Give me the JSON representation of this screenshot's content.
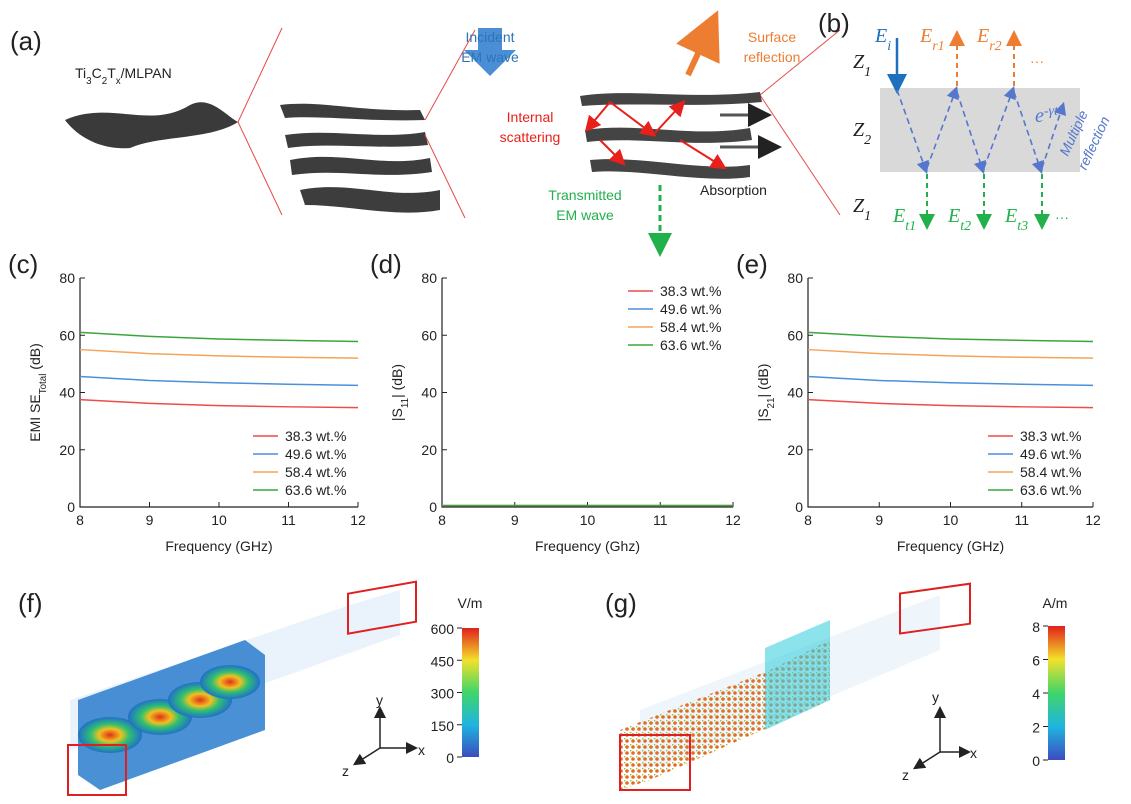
{
  "panel_a": {
    "label": "(a)",
    "material": [
      "Ti",
      "3",
      "C",
      "2",
      "T",
      "x",
      "/MLPAN"
    ],
    "incident": [
      "Incident",
      "EM wave"
    ],
    "surface": [
      "Surface",
      "reflection"
    ],
    "internal": [
      "Internal",
      "scattering"
    ],
    "transmitted": [
      "Transmitted",
      "EM wave"
    ],
    "absorption": "Absorption"
  },
  "panel_b": {
    "label": "(b)",
    "z_top": [
      "Z",
      "1"
    ],
    "z_mid": [
      "Z",
      "2"
    ],
    "z_bot": [
      "Z",
      "1"
    ],
    "e_i": [
      "E",
      "i"
    ],
    "e_r1": [
      "E",
      "r1"
    ],
    "e_r2": [
      "E",
      "r2"
    ],
    "dots_top": "···",
    "decay": [
      "e",
      "-γt"
    ],
    "multiple": [
      "Multiple",
      "reflection"
    ],
    "e_t1": [
      "E",
      "t1"
    ],
    "e_t2": [
      "E",
      "t2"
    ],
    "e_t3": [
      "E",
      "t3"
    ],
    "dots_bot": "···"
  },
  "chart_data": [
    {
      "type": "line",
      "panel_label": "(c)",
      "xlabel": "Frequency (GHz)",
      "ylabel": [
        "EMI SE",
        "Total",
        " (dB)"
      ],
      "x": [
        8,
        9,
        10,
        11,
        12
      ],
      "xlim": [
        8,
        12
      ],
      "xticks": [
        8,
        9,
        10,
        11,
        12
      ],
      "ylim": [
        0,
        80
      ],
      "yticks": [
        0,
        20,
        40,
        60,
        80
      ],
      "legend": "lower right",
      "series": [
        {
          "name": "38.3 wt.%",
          "color": "#ee4b4b",
          "values": [
            37.5,
            36.2,
            35.4,
            35.0,
            34.7
          ]
        },
        {
          "name": "49.6 wt.%",
          "color": "#4a90d9",
          "values": [
            45.6,
            44.2,
            43.4,
            42.9,
            42.5
          ]
        },
        {
          "name": "58.4 wt.%",
          "color": "#f5a35a",
          "values": [
            55.0,
            53.6,
            52.8,
            52.3,
            52.0
          ]
        },
        {
          "name": "63.6 wt.%",
          "color": "#3aa63a",
          "values": [
            61.0,
            59.6,
            58.7,
            58.2,
            57.8
          ]
        }
      ]
    },
    {
      "type": "line",
      "panel_label": "(d)",
      "xlabel": "Frequency (Ghz)",
      "ylabel": [
        "|S",
        "11",
        "| (dB)"
      ],
      "x": [
        8,
        9,
        10,
        11,
        12
      ],
      "xlim": [
        8,
        12
      ],
      "xticks": [
        8,
        9,
        10,
        11,
        12
      ],
      "ylim": [
        0,
        80
      ],
      "yticks": [
        0,
        20,
        40,
        60,
        80
      ],
      "legend": "upper right",
      "series": [
        {
          "name": "38.3 wt.%",
          "color": "#ee4b4b",
          "values": [
            0.5,
            0.5,
            0.5,
            0.5,
            0.5
          ]
        },
        {
          "name": "49.6 wt.%",
          "color": "#4a90d9",
          "values": [
            0.5,
            0.5,
            0.5,
            0.5,
            0.5
          ]
        },
        {
          "name": "58.4 wt.%",
          "color": "#f5a35a",
          "values": [
            0.5,
            0.5,
            0.5,
            0.5,
            0.5
          ]
        },
        {
          "name": "63.6 wt.%",
          "color": "#3aa63a",
          "values": [
            0.5,
            0.5,
            0.5,
            0.5,
            0.5
          ]
        }
      ]
    },
    {
      "type": "line",
      "panel_label": "(e)",
      "xlabel": "Frequency (GHz)",
      "ylabel": [
        "|S",
        "21",
        "| (dB)"
      ],
      "x": [
        8,
        9,
        10,
        11,
        12
      ],
      "xlim": [
        8,
        12
      ],
      "xticks": [
        8,
        9,
        10,
        11,
        12
      ],
      "ylim": [
        0,
        80
      ],
      "yticks": [
        0,
        20,
        40,
        60,
        80
      ],
      "legend": "lower right",
      "series": [
        {
          "name": "38.3 wt.%",
          "color": "#ee4b4b",
          "values": [
            37.5,
            36.2,
            35.4,
            35.0,
            34.7
          ]
        },
        {
          "name": "49.6 wt.%",
          "color": "#4a90d9",
          "values": [
            45.6,
            44.2,
            43.4,
            42.9,
            42.5
          ]
        },
        {
          "name": "58.4 wt.%",
          "color": "#f5a35a",
          "values": [
            55.0,
            53.6,
            52.8,
            52.3,
            52.0
          ]
        },
        {
          "name": "63.6 wt.%",
          "color": "#3aa63a",
          "values": [
            61.0,
            59.6,
            58.7,
            58.2,
            57.8
          ]
        }
      ]
    }
  ],
  "panel_f": {
    "label": "(f)",
    "unit": "V/m",
    "lim": [
      0,
      600
    ],
    "ticks": [
      0,
      150,
      300,
      450,
      600
    ],
    "axis_y": "y",
    "axis_x": "x",
    "axis_z": "z"
  },
  "panel_g": {
    "label": "(g)",
    "unit": "A/m",
    "lim": [
      0,
      8
    ],
    "ticks": [
      0,
      2,
      4,
      6,
      8
    ],
    "axis_y": "y",
    "axis_x": "x",
    "axis_z": "z"
  }
}
